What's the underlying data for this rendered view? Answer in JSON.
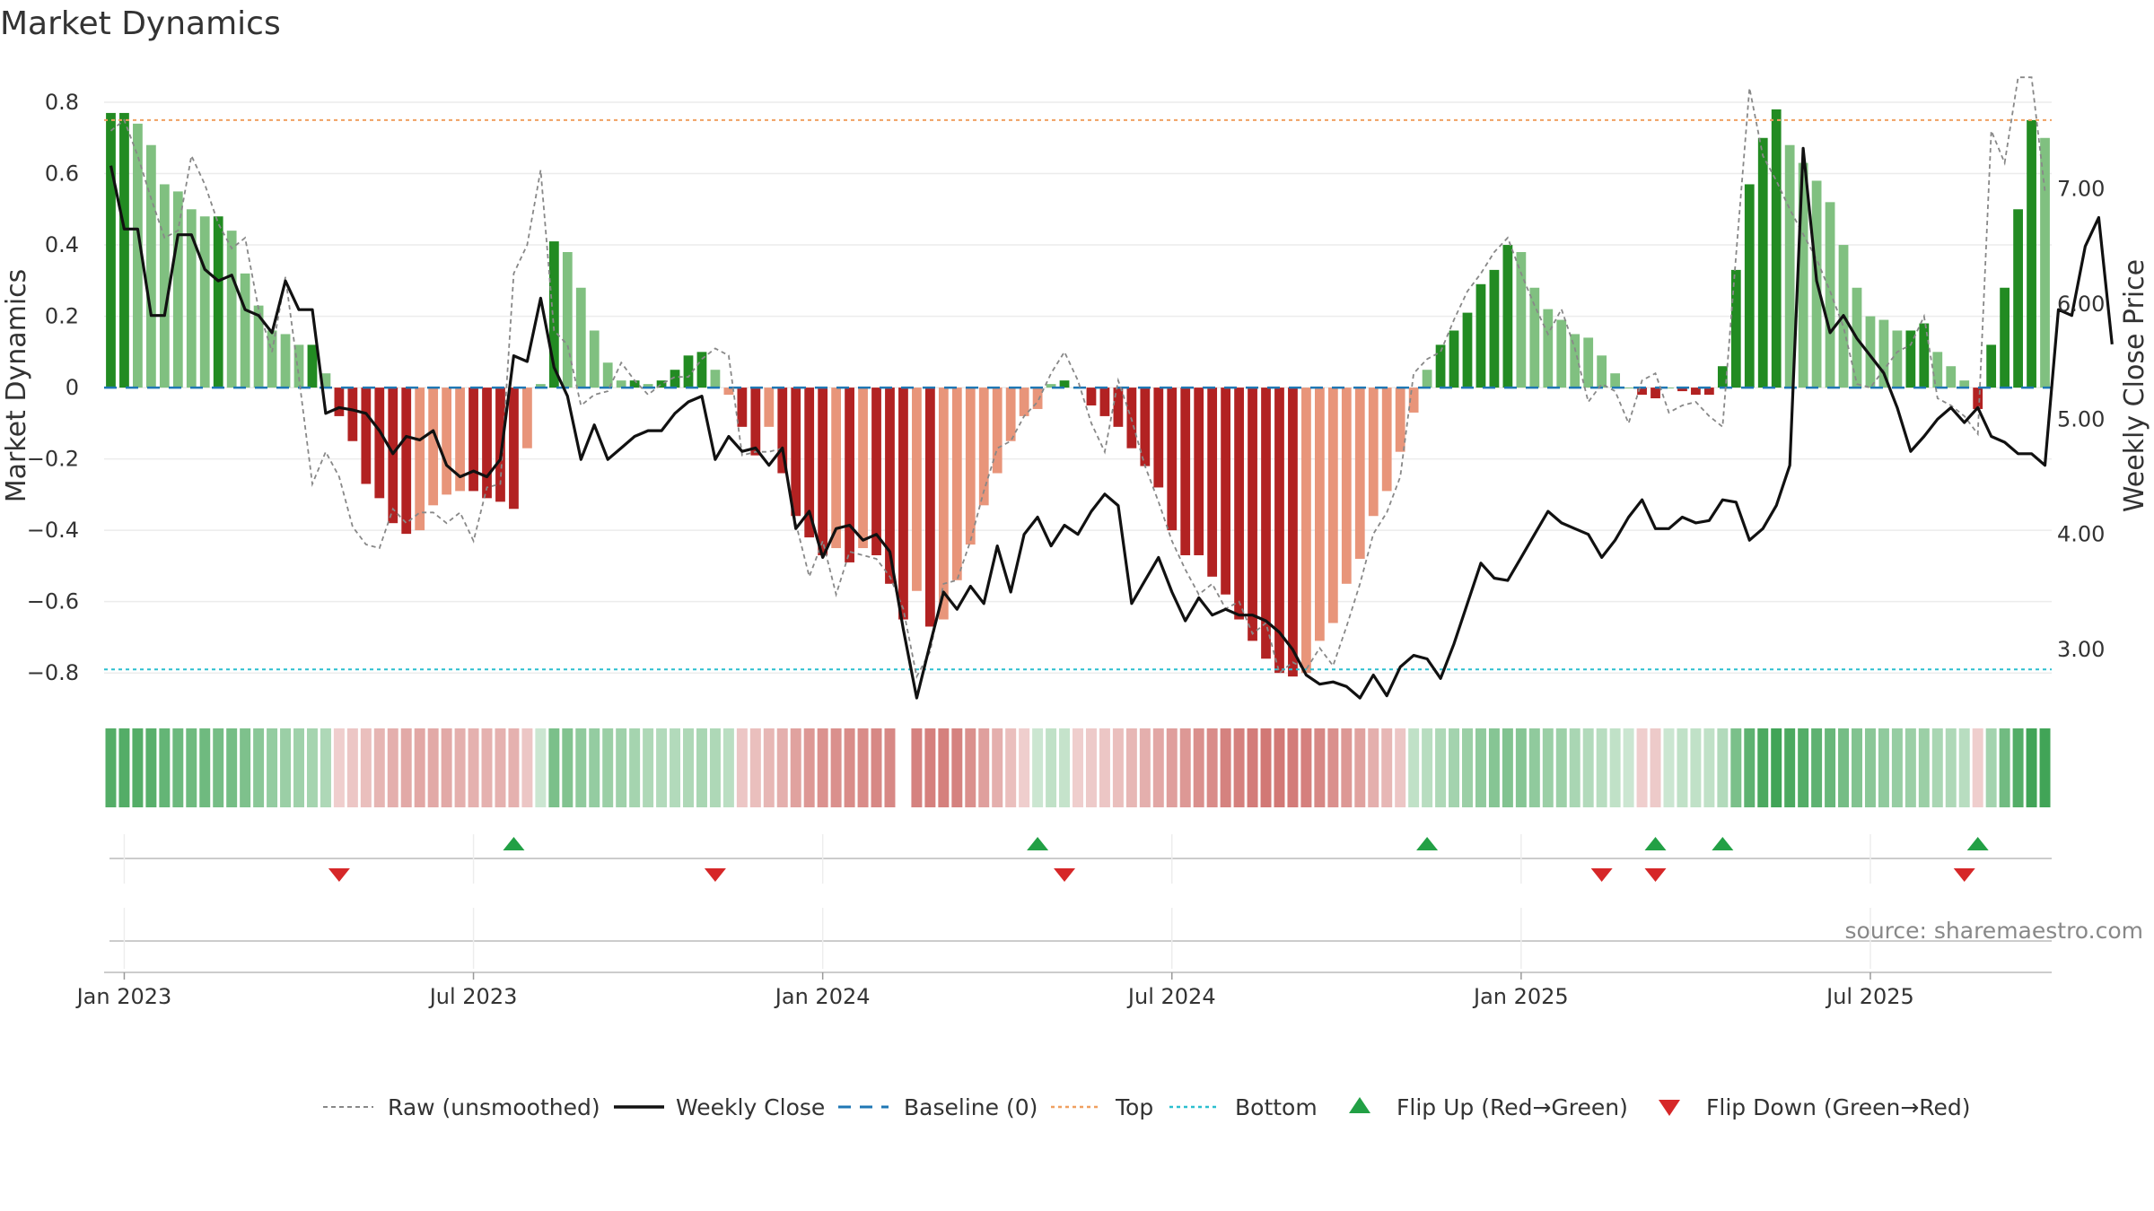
{
  "chart_data": {
    "type": "bar",
    "title": "Market Dynamics",
    "ylabel": "Market Dynamics",
    "y2label": "Weekly Close Price",
    "source": "source: sharemaestro.com",
    "ylim": [
      -0.88,
      0.8
    ],
    "y2lim": [
      2.55,
      7.75
    ],
    "yticks": [
      "0.8",
      "0.6",
      "0.4",
      "0.2",
      "0",
      "−0.2",
      "−0.4",
      "−0.6",
      "−0.8"
    ],
    "ytick_values": [
      0.8,
      0.6,
      0.4,
      0.2,
      0,
      -0.2,
      -0.4,
      -0.6,
      -0.8
    ],
    "y2ticks": [
      "7.00",
      "6.00",
      "5.00",
      "4.00",
      "3.00"
    ],
    "y2tick_values": [
      7,
      6,
      5,
      4,
      3
    ],
    "xticks": [
      "Jan 2023",
      "Jul 2023",
      "Jan 2024",
      "Jul 2024",
      "Jan 2025",
      "Jul 2025"
    ],
    "xtick_index": [
      1,
      27,
      53,
      79,
      105,
      131
    ],
    "top_level": 0.75,
    "bottom_level": -0.79,
    "colors": {
      "green_strong": "#228b22",
      "green_light": "#80c080",
      "red_strong": "#b22222",
      "red_light": "#e8957a",
      "close": "#111111",
      "raw": "#888888",
      "baseline": "#1f77b4",
      "top": "#f0a060",
      "bottom": "#2bbfcf",
      "flip_up": "#22a045",
      "flip_down": "#d62728"
    },
    "legend": [
      {
        "label": "Raw (unsmoothed)",
        "style": "raw"
      },
      {
        "label": "Weekly Close",
        "style": "close"
      },
      {
        "label": "Baseline (0)",
        "style": "baseline"
      },
      {
        "label": "Top",
        "style": "top"
      },
      {
        "label": "Bottom",
        "style": "bottom"
      },
      {
        "label": "Flip Up (Red→Green)",
        "style": "flip_up"
      },
      {
        "label": "Flip Down (Green→Red)",
        "style": "flip_down"
      }
    ],
    "series": [
      {
        "name": "Market Dynamics",
        "values": [
          0.77,
          0.77,
          0.74,
          0.68,
          0.57,
          0.55,
          0.5,
          0.48,
          0.48,
          0.44,
          0.32,
          0.23,
          0.16,
          0.15,
          0.12,
          0.12,
          0.04,
          -0.08,
          -0.15,
          -0.27,
          -0.31,
          -0.38,
          -0.41,
          -0.4,
          -0.33,
          -0.3,
          -0.29,
          -0.29,
          -0.31,
          -0.32,
          -0.34,
          -0.17,
          0.01,
          0.41,
          0.38,
          0.28,
          0.16,
          0.07,
          0.02,
          0.02,
          0.01,
          0.02,
          0.05,
          0.09,
          0.1,
          0.05,
          -0.02,
          -0.11,
          -0.19,
          -0.11,
          -0.24,
          -0.36,
          -0.42,
          -0.47,
          -0.45,
          -0.49,
          -0.45,
          -0.47,
          -0.55,
          -0.65,
          -0.57,
          -0.67,
          -0.65,
          -0.54,
          -0.44,
          -0.33,
          -0.24,
          -0.15,
          -0.08,
          -0.06,
          0.01,
          0.02,
          0.0,
          -0.05,
          -0.08,
          -0.11,
          -0.17,
          -0.22,
          -0.28,
          -0.4,
          -0.47,
          -0.47,
          -0.53,
          -0.58,
          -0.65,
          -0.71,
          -0.76,
          -0.8,
          -0.81,
          -0.8,
          -0.71,
          -0.66,
          -0.55,
          -0.48,
          -0.36,
          -0.29,
          -0.18,
          -0.07,
          0.05,
          0.12,
          0.16,
          0.21,
          0.29,
          0.33,
          0.4,
          0.38,
          0.28,
          0.22,
          0.19,
          0.15,
          0.14,
          0.09,
          0.04,
          0.0,
          -0.02,
          -0.03,
          0.0,
          -0.01,
          -0.02,
          -0.02,
          0.06,
          0.33,
          0.57,
          0.7,
          0.78,
          0.68,
          0.63,
          0.58,
          0.52,
          0.4,
          0.28,
          0.2,
          0.19,
          0.16,
          0.16,
          0.18,
          0.1,
          0.06,
          0.02,
          -0.06,
          0.12,
          0.28,
          0.5,
          0.75,
          0.7
        ]
      },
      {
        "name": "Weekly Close",
        "values": [
          7.2,
          6.65,
          6.65,
          5.9,
          5.9,
          6.6,
          6.6,
          6.3,
          6.2,
          6.25,
          5.95,
          5.9,
          5.75,
          6.2,
          5.95,
          5.95,
          5.05,
          5.1,
          5.08,
          5.05,
          4.9,
          4.7,
          4.85,
          4.82,
          4.9,
          4.6,
          4.5,
          4.55,
          4.5,
          4.65,
          5.55,
          5.5,
          6.05,
          5.45,
          5.2,
          4.65,
          4.95,
          4.65,
          4.75,
          4.85,
          4.9,
          4.9,
          5.05,
          5.15,
          5.2,
          4.65,
          4.85,
          4.72,
          4.75,
          4.6,
          4.75,
          4.05,
          4.2,
          3.8,
          4.05,
          4.08,
          3.95,
          4.0,
          3.85,
          3.18,
          2.58,
          3.05,
          3.5,
          3.35,
          3.55,
          3.4,
          3.9,
          3.5,
          4.0,
          4.15,
          3.9,
          4.08,
          4.0,
          4.2,
          4.35,
          4.25,
          3.4,
          3.6,
          3.8,
          3.5,
          3.25,
          3.45,
          3.3,
          3.35,
          3.3,
          3.3,
          3.25,
          3.15,
          3.0,
          2.78,
          2.7,
          2.72,
          2.68,
          2.58,
          2.78,
          2.6,
          2.85,
          2.95,
          2.92,
          2.75,
          3.05,
          3.4,
          3.75,
          3.62,
          3.6,
          3.8,
          4.0,
          4.2,
          4.1,
          4.05,
          4.0,
          3.8,
          3.95,
          4.15,
          4.3,
          4.05,
          4.05,
          4.15,
          4.1,
          4.12,
          4.3,
          4.28,
          3.95,
          4.05,
          4.25,
          4.6,
          7.35,
          6.2,
          5.75,
          5.9,
          5.7,
          5.55,
          5.4,
          5.1,
          4.72,
          4.85,
          5.0,
          5.1,
          4.97,
          5.1,
          4.85,
          4.8,
          4.7,
          4.7,
          4.6,
          5.95,
          5.9,
          6.5,
          6.75,
          5.65
        ]
      },
      {
        "name": "Raw (unsmoothed)",
        "values": [
          0.72,
          0.75,
          0.65,
          0.53,
          0.42,
          0.44,
          0.65,
          0.57,
          0.46,
          0.39,
          0.42,
          0.22,
          0.1,
          0.31,
          0.03,
          -0.27,
          -0.18,
          -0.25,
          -0.39,
          -0.44,
          -0.45,
          -0.34,
          -0.38,
          -0.35,
          -0.35,
          -0.38,
          -0.35,
          -0.43,
          -0.28,
          -0.27,
          0.32,
          0.4,
          0.61,
          0.16,
          0.12,
          -0.05,
          -0.02,
          -0.01,
          0.07,
          0.02,
          -0.02,
          0.01,
          0.03,
          0.03,
          0.08,
          0.11,
          0.09,
          -0.19,
          -0.18,
          -0.18,
          -0.17,
          -0.38,
          -0.53,
          -0.43,
          -0.58,
          -0.46,
          -0.47,
          -0.48,
          -0.53,
          -0.62,
          -0.81,
          -0.74,
          -0.55,
          -0.54,
          -0.43,
          -0.29,
          -0.17,
          -0.15,
          -0.08,
          -0.04,
          0.04,
          0.1,
          0.02,
          -0.1,
          -0.18,
          0.02,
          -0.09,
          -0.22,
          -0.32,
          -0.43,
          -0.51,
          -0.58,
          -0.55,
          -0.62,
          -0.6,
          -0.69,
          -0.66,
          -0.8,
          -0.77,
          -0.79,
          -0.73,
          -0.78,
          -0.67,
          -0.55,
          -0.41,
          -0.35,
          -0.25,
          0.04,
          0.08,
          0.1,
          0.19,
          0.27,
          0.32,
          0.38,
          0.42,
          0.32,
          0.23,
          0.15,
          0.22,
          0.11,
          -0.04,
          0.01,
          -0.01,
          -0.1,
          0.02,
          0.04,
          -0.07,
          -0.05,
          -0.04,
          -0.08,
          -0.11,
          0.37,
          0.84,
          0.65,
          0.58,
          0.5,
          0.43,
          0.36,
          0.27,
          0.17,
          0.01,
          0.0,
          0.05,
          0.1,
          0.12,
          0.2,
          -0.03,
          -0.05,
          -0.08,
          -0.13,
          0.72,
          0.63,
          0.87,
          0.87,
          0.55
        ]
      }
    ],
    "regime": [
      0.65,
      0.65,
      0.65,
      0.63,
      0.57,
      0.53,
      0.52,
      0.52,
      0.48,
      0.48,
      0.44,
      0.38,
      0.33,
      0.3,
      0.27,
      0.24,
      0.2,
      -0.1,
      -0.15,
      -0.2,
      -0.26,
      -0.3,
      -0.33,
      -0.35,
      -0.34,
      -0.33,
      -0.3,
      -0.28,
      -0.28,
      -0.29,
      -0.29,
      -0.15,
      0.05,
      0.45,
      0.42,
      0.35,
      0.33,
      0.3,
      0.27,
      0.24,
      0.2,
      0.18,
      0.18,
      0.2,
      0.22,
      0.2,
      0.14,
      -0.15,
      -0.2,
      -0.25,
      -0.3,
      -0.38,
      -0.45,
      -0.48,
      -0.5,
      -0.52,
      -0.52,
      -0.55,
      -0.55,
      null,
      -0.58,
      -0.6,
      -0.6,
      -0.58,
      -0.5,
      -0.4,
      -0.3,
      -0.2,
      -0.1,
      0.05,
      0.1,
      0.08,
      -0.1,
      -0.12,
      -0.15,
      -0.2,
      -0.25,
      -0.3,
      -0.35,
      -0.4,
      -0.45,
      -0.5,
      -0.52,
      -0.58,
      -0.6,
      -0.62,
      -0.65,
      -0.65,
      -0.62,
      -0.6,
      -0.55,
      -0.5,
      -0.45,
      -0.38,
      -0.3,
      -0.25,
      -0.15,
      0.1,
      0.15,
      0.2,
      0.25,
      0.3,
      0.35,
      0.4,
      0.42,
      0.4,
      0.35,
      0.3,
      0.28,
      0.22,
      0.18,
      0.15,
      0.1,
      0.05,
      -0.1,
      -0.12,
      0.05,
      0.1,
      0.1,
      0.1,
      0.18,
      0.45,
      0.6,
      0.7,
      0.75,
      0.7,
      0.65,
      0.6,
      0.55,
      0.48,
      0.42,
      0.38,
      0.35,
      0.32,
      0.3,
      0.3,
      0.22,
      0.2,
      0.15,
      -0.1,
      0.25,
      0.5,
      0.65,
      0.75,
      0.75
    ],
    "flip_up_index": [
      30,
      69,
      98,
      115,
      120,
      139
    ],
    "flip_down_index": [
      17,
      45,
      71,
      111,
      115,
      138
    ]
  }
}
